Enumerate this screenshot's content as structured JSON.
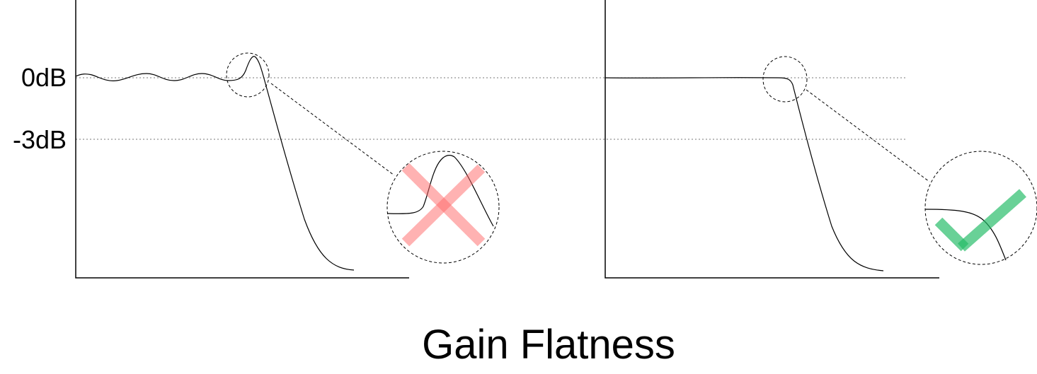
{
  "title": "Gain Flatness",
  "y_labels": {
    "zero": "0dB",
    "minus3": "-3dB"
  },
  "panels": [
    {
      "name": "with-ripple-peaking",
      "verdict": "bad",
      "mark_icon": "cross-icon",
      "mark_color": "#ff8080"
    },
    {
      "name": "flat-response",
      "verdict": "good",
      "mark_icon": "check-icon",
      "mark_color": "#33bb66"
    }
  ]
}
